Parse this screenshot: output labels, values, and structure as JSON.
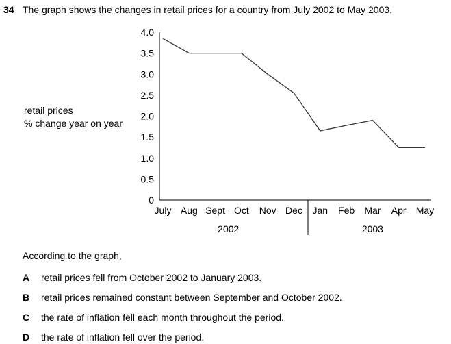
{
  "question": {
    "number": "34",
    "text": "The graph shows the changes in retail prices for a country from July 2002 to May 2003."
  },
  "chart_data": {
    "type": "line",
    "ylabel_lines": [
      "retail prices",
      "% change year on year"
    ],
    "categories": [
      "July",
      "Aug",
      "Sept",
      "Oct",
      "Nov",
      "Dec",
      "Jan",
      "Feb",
      "Mar",
      "Apr",
      "May"
    ],
    "year_labels": [
      "2002",
      "2003"
    ],
    "yticks": [
      "4.0",
      "3.5",
      "3.0",
      "2.5",
      "2.0",
      "1.5",
      "1.0",
      "0.5",
      "0"
    ],
    "ylim": [
      0,
      4.0
    ],
    "series": [
      {
        "values": [
          3.85,
          3.5,
          3.5,
          3.5,
          3.0,
          2.55,
          1.65,
          1.78,
          1.9,
          1.25,
          1.25
        ]
      }
    ],
    "grid": false,
    "colors": {
      "line": "#333333",
      "axis": "#000000"
    }
  },
  "prompt": "According to the graph,",
  "options": [
    {
      "letter": "A",
      "text": "retail prices fell from October 2002 to January 2003."
    },
    {
      "letter": "B",
      "text": "retail prices remained constant between September and October 2002."
    },
    {
      "letter": "C",
      "text": "the rate of inflation fell each month throughout the period."
    },
    {
      "letter": "D",
      "text": "the rate of inflation fell over the period."
    }
  ]
}
